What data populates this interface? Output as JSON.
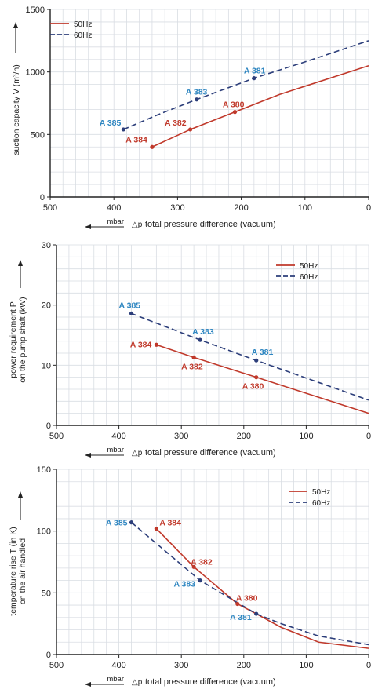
{
  "chart_data": [
    {
      "type": "line",
      "ylabel": "suction capacity V (m³/h)",
      "ylabel_arrow": true,
      "xlabel_symbol": "△p",
      "xlabel": "total pressure difference (vacuum)",
      "x_unit": "mbar",
      "xlim": [
        500,
        0
      ],
      "ylim": [
        0,
        1500
      ],
      "x_ticks": [
        500,
        400,
        300,
        200,
        100,
        0
      ],
      "y_ticks": [
        0,
        500,
        1000,
        1500
      ],
      "grid": true,
      "legend_position": "top-left",
      "series": [
        {
          "name": "50Hz",
          "color": "#c0392b",
          "style": "solid",
          "x": [
            340,
            280,
            210,
            140,
            0
          ],
          "y": [
            400,
            540,
            680,
            820,
            1050
          ]
        },
        {
          "name": "60Hz",
          "color": "#2c3e7a",
          "style": "dashed",
          "x": [
            385,
            330,
            270,
            180,
            100,
            0
          ],
          "y": [
            540,
            660,
            780,
            950,
            1080,
            1250
          ]
        }
      ],
      "points": [
        {
          "label": "A 384",
          "x": 340,
          "y": 400,
          "series": 0,
          "lx": -6,
          "ly": -6,
          "anchor": "end"
        },
        {
          "label": "A 382",
          "x": 280,
          "y": 540,
          "series": 0,
          "lx": -5,
          "ly": -5,
          "anchor": "end"
        },
        {
          "label": "A 380",
          "x": 210,
          "y": 680,
          "series": 0,
          "lx": 12,
          "ly": -6,
          "anchor": "end"
        },
        {
          "label": "A 385",
          "x": 385,
          "y": 540,
          "series": 1,
          "lx": -3,
          "ly": -5,
          "anchor": "end"
        },
        {
          "label": "A 383",
          "x": 270,
          "y": 780,
          "series": 1,
          "lx": -14,
          "ly": -6,
          "anchor": "start"
        },
        {
          "label": "A 381",
          "x": 180,
          "y": 950,
          "series": 1,
          "lx": -13,
          "ly": -6,
          "anchor": "start"
        }
      ]
    },
    {
      "type": "line",
      "ylabel": "power requirement P",
      "ylabel2": "on the pump shaft (kW)",
      "ylabel_arrow": true,
      "xlabel_symbol": "△p",
      "xlabel": "total pressure difference (vacuum)",
      "x_unit": "mbar",
      "xlim": [
        500,
        0
      ],
      "ylim": [
        0,
        30
      ],
      "x_ticks": [
        500,
        400,
        300,
        200,
        100,
        0
      ],
      "y_ticks": [
        0,
        10,
        20,
        30
      ],
      "grid": true,
      "legend_position": "top-right",
      "series": [
        {
          "name": "50Hz",
          "color": "#c0392b",
          "style": "solid",
          "x": [
            340,
            280,
            180,
            0
          ],
          "y": [
            13.4,
            11.3,
            8.0,
            2.0
          ]
        },
        {
          "name": "60Hz",
          "color": "#2c3e7a",
          "style": "dashed",
          "x": [
            380,
            270,
            180,
            0
          ],
          "y": [
            18.6,
            14.2,
            10.8,
            4.2
          ]
        }
      ],
      "points": [
        {
          "label": "A 384",
          "x": 340,
          "y": 13.4,
          "series": 0,
          "lx": -6,
          "ly": 3,
          "anchor": "end"
        },
        {
          "label": "A 382",
          "x": 280,
          "y": 11.3,
          "series": 0,
          "lx": -16,
          "ly": 15,
          "anchor": "start"
        },
        {
          "label": "A 380",
          "x": 180,
          "y": 8.0,
          "series": 0,
          "lx": -18,
          "ly": 15,
          "anchor": "start"
        },
        {
          "label": "A 385",
          "x": 380,
          "y": 18.6,
          "series": 1,
          "lx": -16,
          "ly": -7,
          "anchor": "start"
        },
        {
          "label": "A 383",
          "x": 270,
          "y": 14.2,
          "series": 1,
          "lx": -10,
          "ly": -7,
          "anchor": "start"
        },
        {
          "label": "A 381",
          "x": 180,
          "y": 10.8,
          "series": 1,
          "lx": -6,
          "ly": -7,
          "anchor": "start"
        }
      ]
    },
    {
      "type": "line",
      "ylabel": "temperature rise T (in K)",
      "ylabel2": "on the air handled",
      "ylabel_arrow": true,
      "xlabel_symbol": "△p",
      "xlabel": "total pressure difference (vacuum)",
      "x_unit": "mbar",
      "xlim": [
        500,
        0
      ],
      "ylim": [
        0,
        150
      ],
      "x_ticks": [
        500,
        400,
        300,
        200,
        100,
        0
      ],
      "y_ticks": [
        0,
        50,
        100,
        150
      ],
      "grid": true,
      "legend_position": "top-right",
      "series": [
        {
          "name": "50Hz",
          "color": "#c0392b",
          "style": "solid",
          "x": [
            340,
            280,
            210,
            180,
            140,
            80,
            0
          ],
          "y": [
            102,
            71,
            41,
            33,
            22,
            10,
            5
          ]
        },
        {
          "name": "60Hz",
          "color": "#2c3e7a",
          "style": "dashed",
          "x": [
            380,
            270,
            180,
            140,
            80,
            0
          ],
          "y": [
            107,
            60,
            33,
            25,
            15,
            8
          ]
        }
      ],
      "points": [
        {
          "label": "A 384",
          "x": 340,
          "y": 102,
          "series": 0,
          "lx": 4,
          "ly": -4,
          "anchor": "start"
        },
        {
          "label": "A 382",
          "x": 280,
          "y": 71,
          "series": 0,
          "lx": -4,
          "ly": -3,
          "anchor": "start"
        },
        {
          "label": "A 380",
          "x": 210,
          "y": 41,
          "series": 0,
          "lx": -2,
          "ly": -4,
          "anchor": "start"
        },
        {
          "label": "A 385",
          "x": 380,
          "y": 107,
          "series": 1,
          "lx": -5,
          "ly": 4,
          "anchor": "end"
        },
        {
          "label": "A 383",
          "x": 270,
          "y": 60,
          "series": 1,
          "lx": -6,
          "ly": 8,
          "anchor": "end"
        },
        {
          "label": "A 381",
          "x": 180,
          "y": 33,
          "series": 1,
          "lx": -6,
          "ly": 8,
          "anchor": "end"
        }
      ]
    }
  ]
}
